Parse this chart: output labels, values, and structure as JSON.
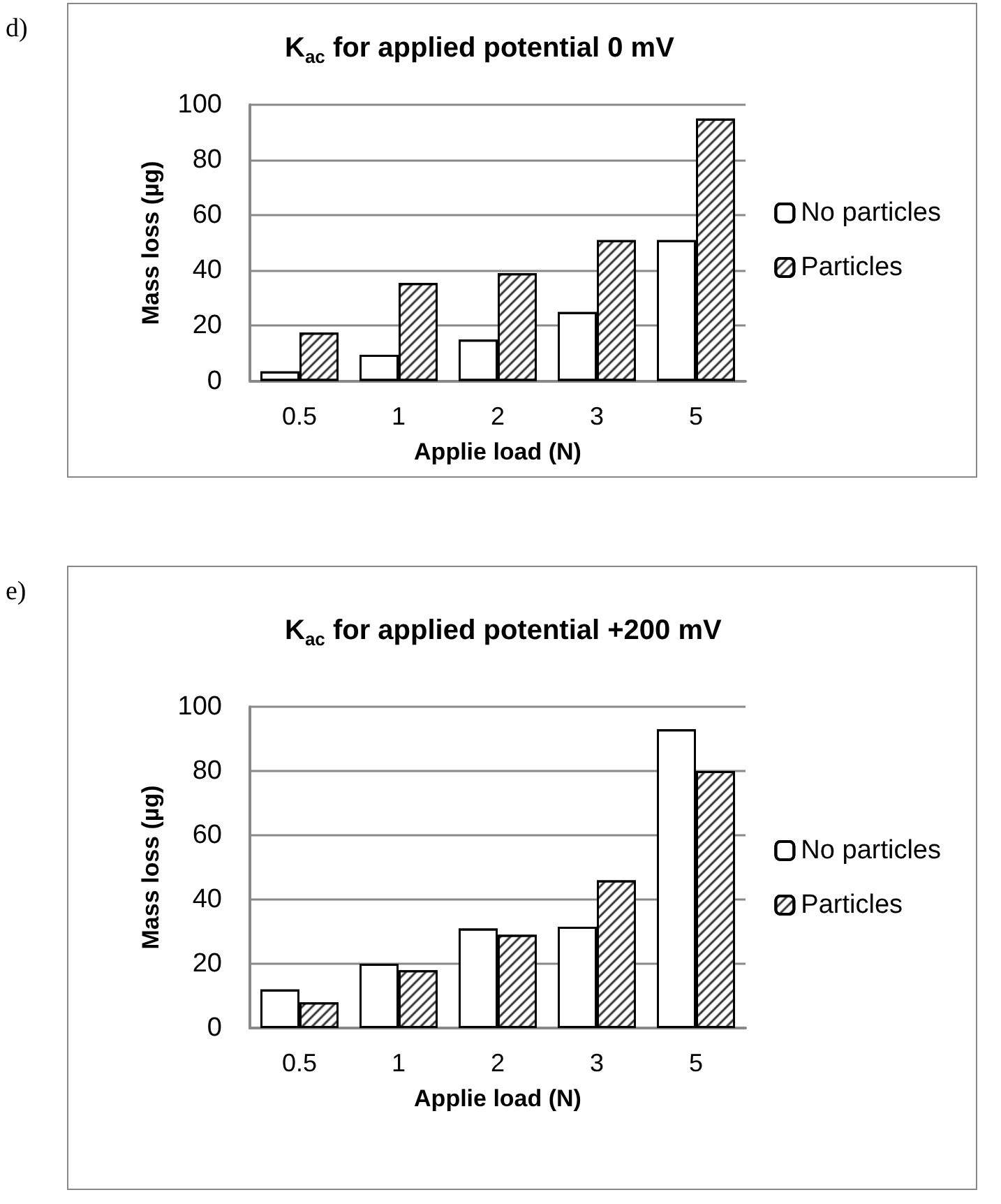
{
  "chart_data": [
    {
      "type": "bar",
      "title": "K$_{ac}$ for applied potential 0 mV",
      "xlabel": "Applie load (N)",
      "ylabel": "Mass loss (µg)",
      "annotations": [
        "d)"
      ],
      "categories": [
        "0.5",
        "1",
        "2",
        "3",
        "5"
      ],
      "series": [
        {
          "name": "No particles",
          "color": "#ffffff",
          "values": [
            3.5,
            9.5,
            15,
            25,
            51
          ]
        },
        {
          "name": "Particles",
          "color": "#ffffff",
          "values": [
            17.5,
            35.5,
            39,
            51,
            95
          ]
        }
      ],
      "ylim": [
        0,
        100
      ],
      "yticks": [
        0,
        20,
        40,
        60,
        80,
        100
      ],
      "grid": "y",
      "legend": "right"
    },
    {
      "type": "bar",
      "title": "K$_{ac}$ for applied potential +200 mV",
      "xlabel": "Applie load (N)",
      "ylabel": "Mass loss (µg)",
      "annotations": [
        "e)"
      ],
      "categories": [
        "0.5",
        "1",
        "2",
        "3",
        "5"
      ],
      "series": [
        {
          "name": "No particles",
          "color": "#ffffff",
          "values": [
            12,
            20,
            31,
            31.5,
            93
          ]
        },
        {
          "name": "Particles",
          "color": "#ffffff",
          "values": [
            8,
            18,
            29,
            46,
            80
          ]
        }
      ],
      "ylim": [
        0,
        100
      ],
      "yticks": [
        0,
        20,
        40,
        60,
        80,
        100
      ],
      "grid": "y",
      "legend": "right"
    }
  ]
}
